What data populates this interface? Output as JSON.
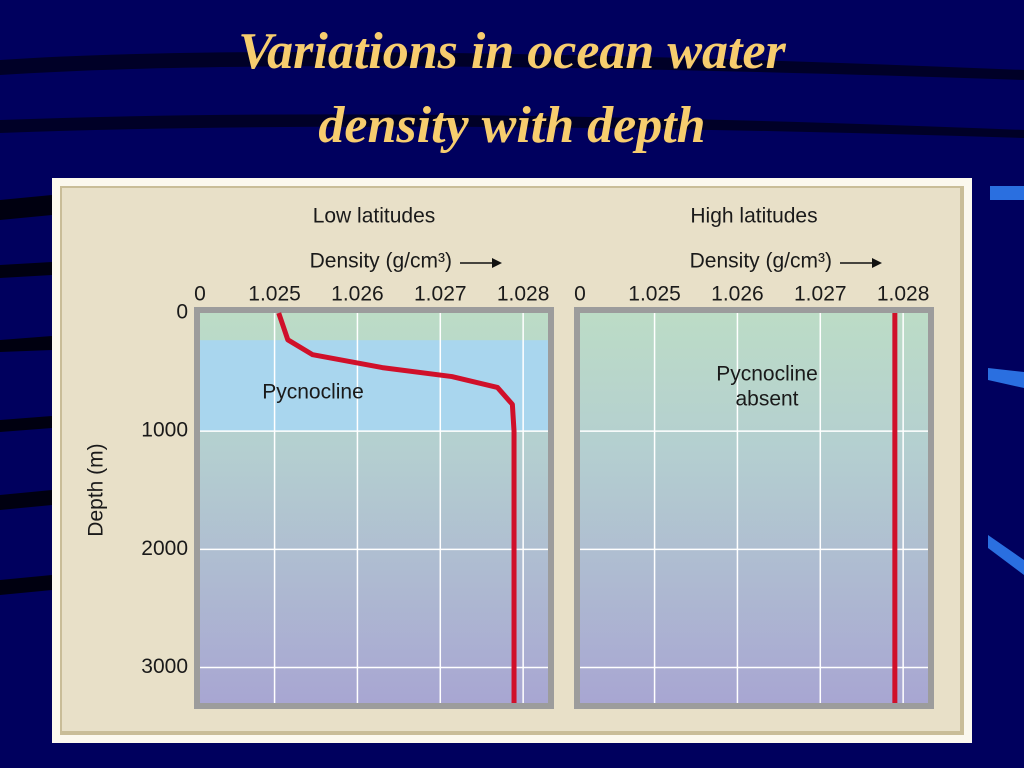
{
  "slide_title": [
    "Variations in ocean water",
    "density with depth"
  ],
  "chart_data": [
    {
      "type": "line",
      "title": "Low latitudes",
      "x_label": "Density (g/cm³)",
      "x_break_label": "0",
      "xlim": [
        1.0241,
        1.0283
      ],
      "xticks": [
        1.025,
        1.026,
        1.027,
        1.028
      ],
      "ylim": [
        0,
        3300
      ],
      "yticks": [
        0,
        1000,
        2000,
        3000
      ],
      "y_inverted": true,
      "y_label": "Depth (m)",
      "show_ytick_labels": true,
      "grid": true,
      "band": [
        230,
        1000
      ],
      "band_color": "#a9d6ee",
      "annotation_lines": [
        "Pycnocline"
      ],
      "series": [
        {
          "color": "#d0102a",
          "x": [
            1.02505,
            1.02516,
            1.02546,
            1.0263,
            1.02714,
            1.02769,
            1.02787,
            1.02789,
            1.02789
          ],
          "values": [
            0,
            227,
            353,
            462,
            538,
            630,
            773,
            1000,
            3300
          ]
        }
      ]
    },
    {
      "type": "line",
      "title": "High latitudes",
      "x_label": "Density (g/cm³)",
      "x_break_label": "0",
      "xlim": [
        1.0241,
        1.0283
      ],
      "xticks": [
        1.025,
        1.026,
        1.027,
        1.028
      ],
      "ylim": [
        0,
        3300
      ],
      "yticks": [
        0,
        1000,
        2000,
        3000
      ],
      "y_inverted": true,
      "show_ytick_labels": false,
      "grid": true,
      "annotation_lines": [
        "Pycnocline",
        "absent"
      ],
      "series": [
        {
          "color": "#d0102a",
          "x": [
            1.0279,
            1.0279
          ],
          "values": [
            0,
            3300
          ]
        }
      ]
    }
  ]
}
